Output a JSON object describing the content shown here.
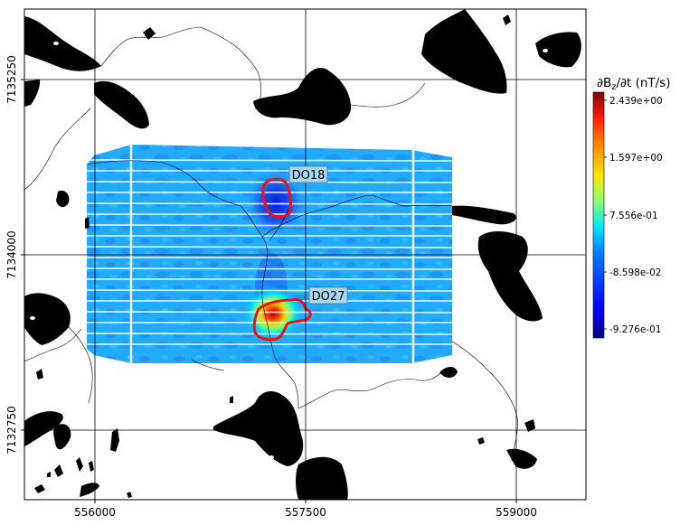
{
  "map": {
    "x_ticks": [
      "556000",
      "557500",
      "559000"
    ],
    "y_ticks": [
      "7135250",
      "7134000",
      "7132750"
    ],
    "targets": [
      {
        "name": "DO18"
      },
      {
        "name": "DO27"
      }
    ]
  },
  "colorbar": {
    "title_prefix": "∂B",
    "title_sub": "z",
    "title_suffix": "/∂t (nT/s)",
    "ticks": [
      "2.439e+00",
      "1.597e+00",
      "7.556e-01",
      "-8.598e-02",
      "-9.276e-01"
    ],
    "colormap": "jet"
  },
  "colors": {
    "land": "#000000",
    "target_outline": "#ee1111",
    "survey_base": "#22aaff",
    "label_box": "#a9d8f3"
  }
}
